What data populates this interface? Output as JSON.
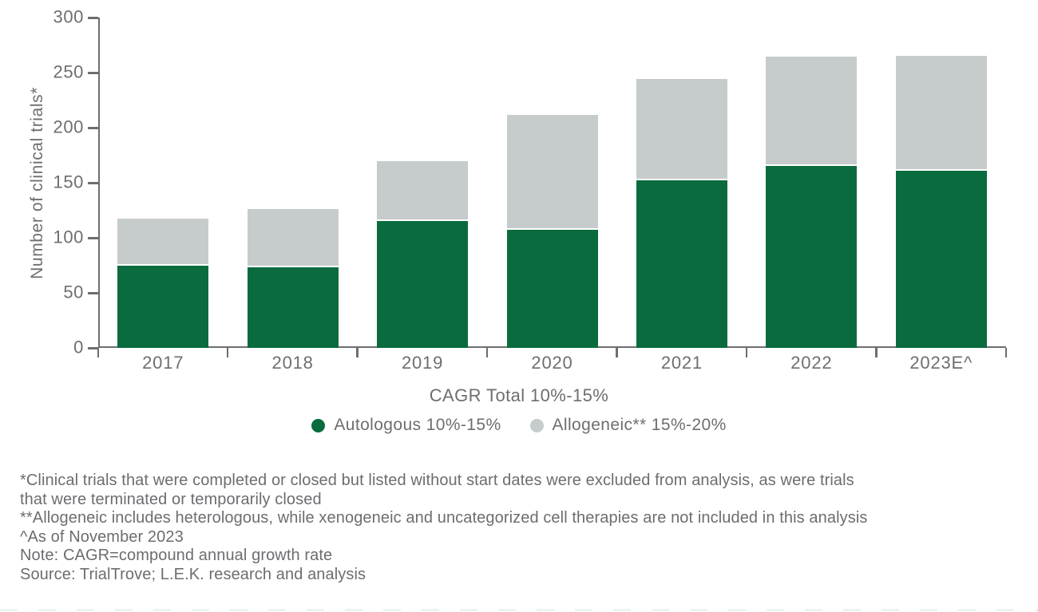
{
  "chart_data": {
    "type": "bar",
    "stacked": true,
    "title": "",
    "xlabel": "CAGR Total 10%-15%",
    "ylabel": "Number of clinical trials*",
    "categories": [
      "2017",
      "2018",
      "2019",
      "2020",
      "2021",
      "2022",
      "2023E^"
    ],
    "series": [
      {
        "name": "Autologous 10%-15%",
        "color": "#0a6b3e",
        "values": [
          75,
          73,
          115,
          107,
          152,
          165,
          161
        ]
      },
      {
        "name": "Allogeneic** 15%-20%",
        "color": "#c6cccb",
        "values": [
          43,
          53,
          54,
          104,
          92,
          99,
          104
        ]
      }
    ],
    "totals": [
      118,
      126,
      169,
      211,
      244,
      264,
      265
    ],
    "ylim": [
      0,
      300
    ],
    "yticks": [
      0,
      50,
      100,
      150,
      200,
      250,
      300
    ],
    "grid": false,
    "legend_position": "bottom-center"
  },
  "footnotes": {
    "lines": [
      "*Clinical trials that were completed or closed but listed without start dates were excluded from analysis, as were trials",
      "that were terminated or temporarily closed",
      "**Allogeneic includes heterologous, while xenogeneic and uncategorized cell therapies are not included in this analysis",
      "^As of November 2023",
      "Note: CAGR=compound annual growth rate",
      "Source: TrialTrove; L.E.K. research and analysis"
    ]
  },
  "colors": {
    "autologous_green": "#0a6b3e",
    "allogeneic_gray": "#c6cccb",
    "axis_text_gray": "#6d6e71",
    "background": "#ffffff"
  }
}
